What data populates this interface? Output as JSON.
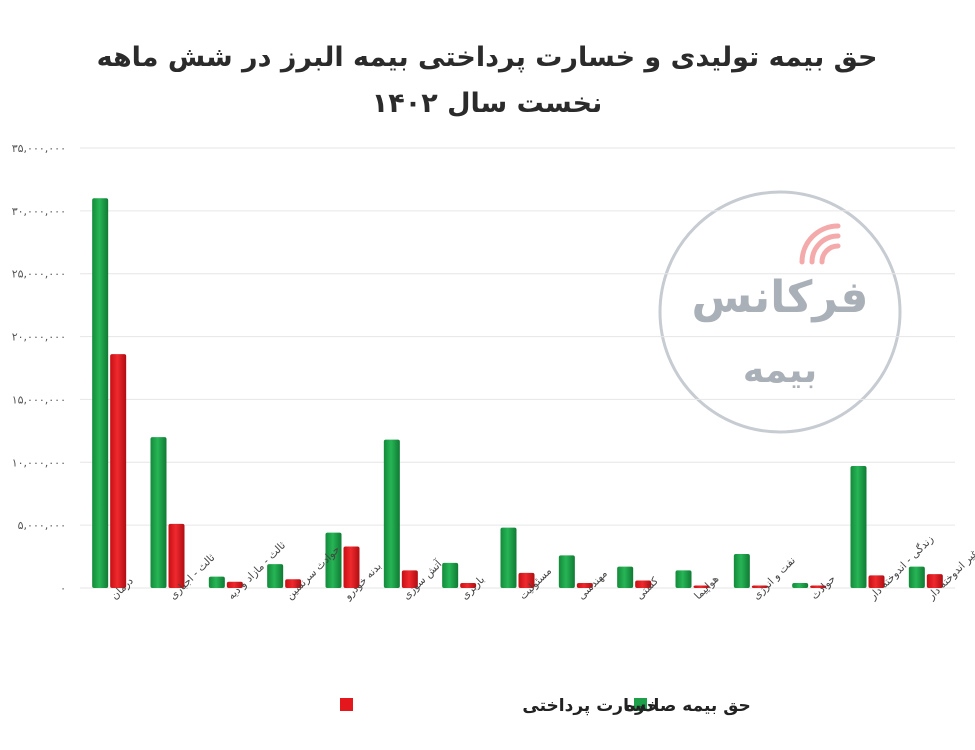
{
  "chart_data": {
    "type": "bar",
    "title_line1": "حق بیمه تولیدی و خسارت پرداختی بیمه البرز در شش ماهه",
    "title_line2": "نخست سال ۱۴۰۲",
    "ylim": [
      0,
      35000000
    ],
    "yticks": [
      0,
      5000000,
      10000000,
      15000000,
      20000000,
      25000000,
      30000000,
      35000000
    ],
    "ytick_labels": [
      "۰",
      "۵,۰۰۰,۰۰۰",
      "۱۰,۰۰۰,۰۰۰",
      "۱۵,۰۰۰,۰۰۰",
      "۲۰,۰۰۰,۰۰۰",
      "۲۵,۰۰۰,۰۰۰",
      "۳۰,۰۰۰,۰۰۰",
      "۳۵,۰۰۰,۰۰۰"
    ],
    "grid": true,
    "legend_position": "bottom",
    "categories": [
      "درمان",
      "ثالث - اجباری",
      "ثالث - مازاد و دیه",
      "حوادث سرنشین",
      "بدنه خودرو",
      "آتش سوزی",
      "باربری",
      "مسئولیت",
      "مهندسی",
      "کشتی",
      "هواپیما",
      "نفت و انرژی",
      "حوادث",
      "زندگی - اندوخته دار",
      "زندگی - غیر اندوخته دار"
    ],
    "series": [
      {
        "name": "حق بیمه صادره",
        "color": "#1ea04a",
        "values": [
          31000000,
          12000000,
          900000,
          1900000,
          4400000,
          11800000,
          2000000,
          4800000,
          2600000,
          1700000,
          1400000,
          2700000,
          400000,
          9700000,
          1700000
        ]
      },
      {
        "name": "خسارت پرداختی",
        "color": "#e3171c",
        "values": [
          18600000,
          5100000,
          500000,
          700000,
          3300000,
          1400000,
          400000,
          1200000,
          400000,
          600000,
          200000,
          200000,
          200000,
          1000000,
          1100000
        ]
      }
    ]
  },
  "watermark": {
    "brand": "فرکانس",
    "sub": "بیمه",
    "colors": {
      "brand_gray": "#a9b0b7",
      "brand_red": "#f4aaaa",
      "ring": "#c7ccd2"
    }
  }
}
